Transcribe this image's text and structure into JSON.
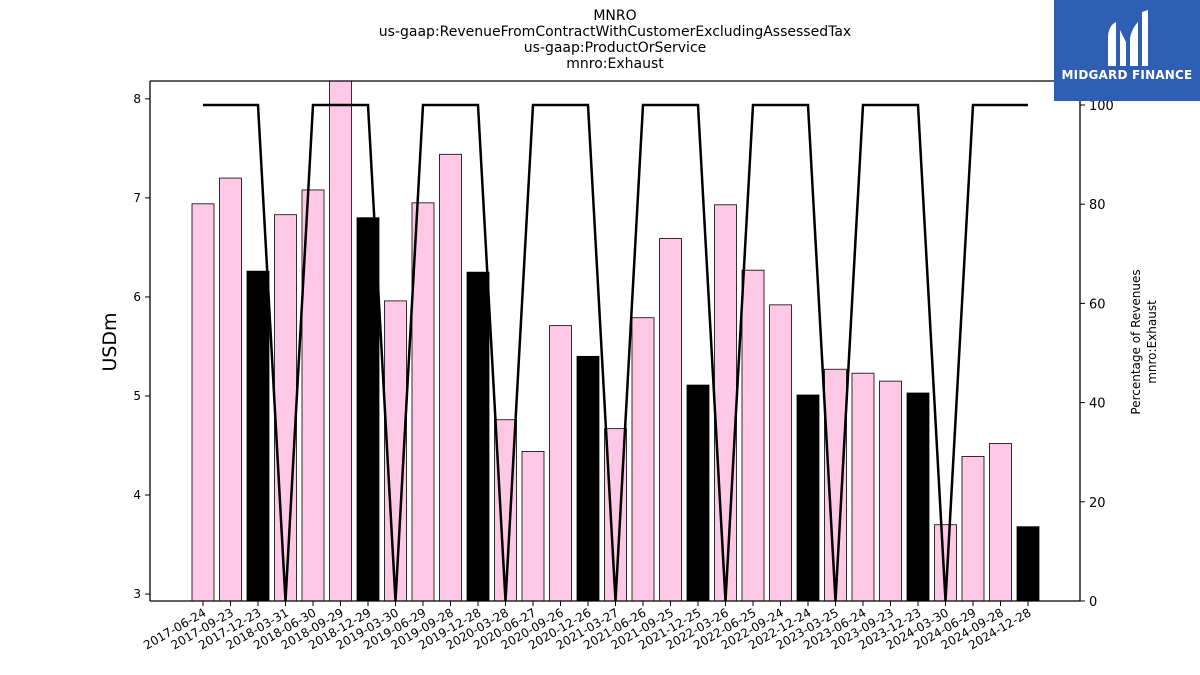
{
  "chart_data": {
    "type": "bar",
    "title": [
      "MNRO",
      "us-gaap:RevenueFromContractWithCustomerExcludingAssessedTax",
      "us-gaap:ProductOrService",
      "mnro:Exhaust"
    ],
    "ylabel": "USDm",
    "ylabel_right": [
      "Percentage of Revenues",
      "mnro:Exhaust"
    ],
    "ylim": [
      2.93,
      8.18
    ],
    "ylim_right": [
      0,
      100
    ],
    "yticks": [
      3,
      4,
      5,
      6,
      7,
      8
    ],
    "yticks_right": [
      0,
      20,
      40,
      60,
      80,
      100
    ],
    "categories": [
      "2017-06-24",
      "2017-09-23",
      "2017-12-23",
      "2018-03-31",
      "2018-06-30",
      "2018-09-29",
      "2018-12-29",
      "2019-03-30",
      "2019-06-29",
      "2019-09-28",
      "2019-12-28",
      "2020-03-28",
      "2020-06-27",
      "2020-09-26",
      "2020-12-26",
      "2021-03-27",
      "2021-06-26",
      "2021-09-25",
      "2021-12-25",
      "2022-03-26",
      "2022-06-25",
      "2022-09-24",
      "2022-12-24",
      "2023-03-25",
      "2023-06-24",
      "2023-09-23",
      "2023-12-23",
      "2024-03-30",
      "2024-06-29",
      "2024-09-28",
      "2024-12-28"
    ],
    "series": [
      {
        "values": [
          6.94,
          7.2,
          6.26,
          6.83,
          7.08,
          8.23,
          6.8,
          5.96,
          6.95,
          7.44,
          6.25,
          4.76,
          4.44,
          5.71,
          5.4,
          4.67,
          5.79,
          6.59,
          5.11,
          6.93,
          6.27,
          5.92,
          5.01,
          5.27,
          5.23,
          5.15,
          5.03,
          3.7,
          4.39,
          4.52,
          3.68
        ]
      },
      {
        "type": "line",
        "axis": "right",
        "values": [
          100,
          100,
          100,
          0,
          100,
          100,
          100,
          0,
          100,
          100,
          100,
          0,
          100,
          100,
          100,
          0,
          100,
          100,
          100,
          0,
          100,
          100,
          100,
          0,
          100,
          100,
          100,
          0,
          100,
          100,
          100
        ]
      }
    ],
    "bar_colors": [
      "#ffc8e6",
      "#ffc8e6",
      "#000000",
      "#ffc8e6",
      "#ffc8e6",
      "#ffc8e6",
      "#000000",
      "#ffc8e6",
      "#ffc8e6",
      "#ffc8e6",
      "#000000",
      "#ffc8e6",
      "#ffc8e6",
      "#ffc8e6",
      "#000000",
      "#ffc8e6",
      "#ffc8e6",
      "#ffc8e6",
      "#000000",
      "#ffc8e6",
      "#ffc8e6",
      "#ffc8e6",
      "#000000",
      "#ffc8e6",
      "#ffc8e6",
      "#ffc8e6",
      "#000000",
      "#ffc8e6",
      "#ffc8e6",
      "#ffc8e6",
      "#000000"
    ]
  },
  "logo": {
    "text": "MIDGARD FINANCE",
    "background": "#2f5fb3"
  }
}
